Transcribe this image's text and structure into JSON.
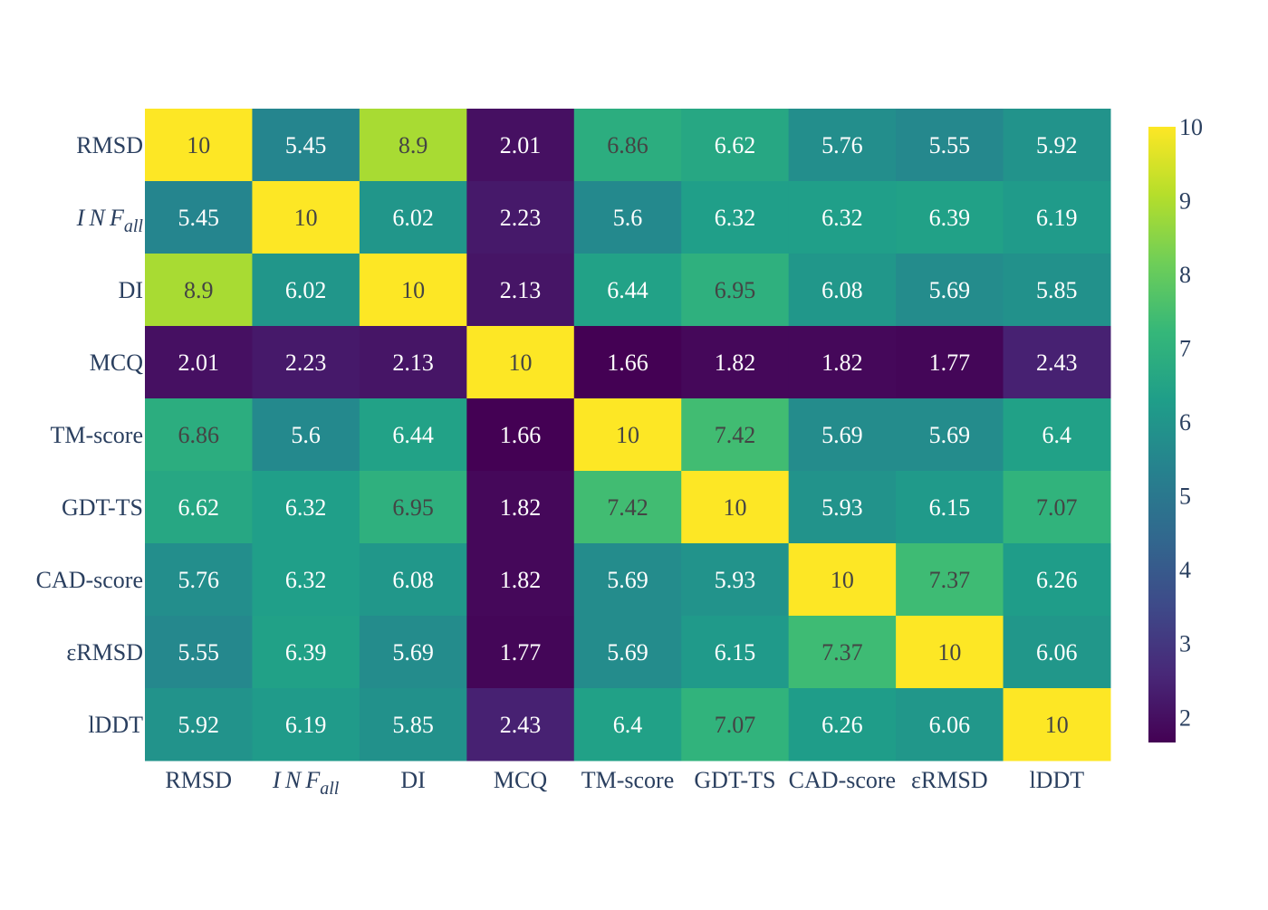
{
  "chart_data": {
    "type": "heatmap",
    "title": "",
    "xlabel": "",
    "ylabel": "",
    "x_categories": [
      "RMSD",
      "INF_all",
      "DI",
      "MCQ",
      "TM-score",
      "GDT-TS",
      "CAD-score",
      "εRMSD",
      "lDDT"
    ],
    "y_categories": [
      "RMSD",
      "INF_all",
      "DI",
      "MCQ",
      "TM-score",
      "GDT-TS",
      "CAD-score",
      "εRMSD",
      "lDDT"
    ],
    "values": [
      [
        10,
        5.45,
        8.9,
        2.01,
        6.86,
        6.62,
        5.76,
        5.55,
        5.92
      ],
      [
        5.45,
        10,
        6.02,
        2.23,
        5.6,
        6.32,
        6.32,
        6.39,
        6.19
      ],
      [
        8.9,
        6.02,
        10,
        2.13,
        6.44,
        6.95,
        6.08,
        5.69,
        5.85
      ],
      [
        2.01,
        2.23,
        2.13,
        10,
        1.66,
        1.82,
        1.82,
        1.77,
        2.43
      ],
      [
        6.86,
        5.6,
        6.44,
        1.66,
        10,
        7.42,
        5.69,
        5.69,
        6.4
      ],
      [
        6.62,
        6.32,
        6.95,
        1.82,
        7.42,
        10,
        5.93,
        6.15,
        7.07
      ],
      [
        5.76,
        6.32,
        6.08,
        1.82,
        5.69,
        5.93,
        10,
        7.37,
        6.26
      ],
      [
        5.55,
        6.39,
        5.69,
        1.77,
        5.69,
        6.15,
        7.37,
        10,
        6.06
      ],
      [
        5.92,
        6.19,
        5.85,
        2.43,
        6.4,
        7.07,
        6.26,
        6.06,
        10
      ]
    ],
    "zmin": 1.66,
    "zmax": 10,
    "colorscale": "viridis",
    "colorbar": {
      "ticks": [
        2,
        3,
        4,
        5,
        6,
        7,
        8,
        9,
        10
      ],
      "placement": "right"
    },
    "grid": false,
    "text_color_dark": "#444444",
    "text_color_light": "#ffffff",
    "axis_text_color": "#2a3f5f"
  }
}
